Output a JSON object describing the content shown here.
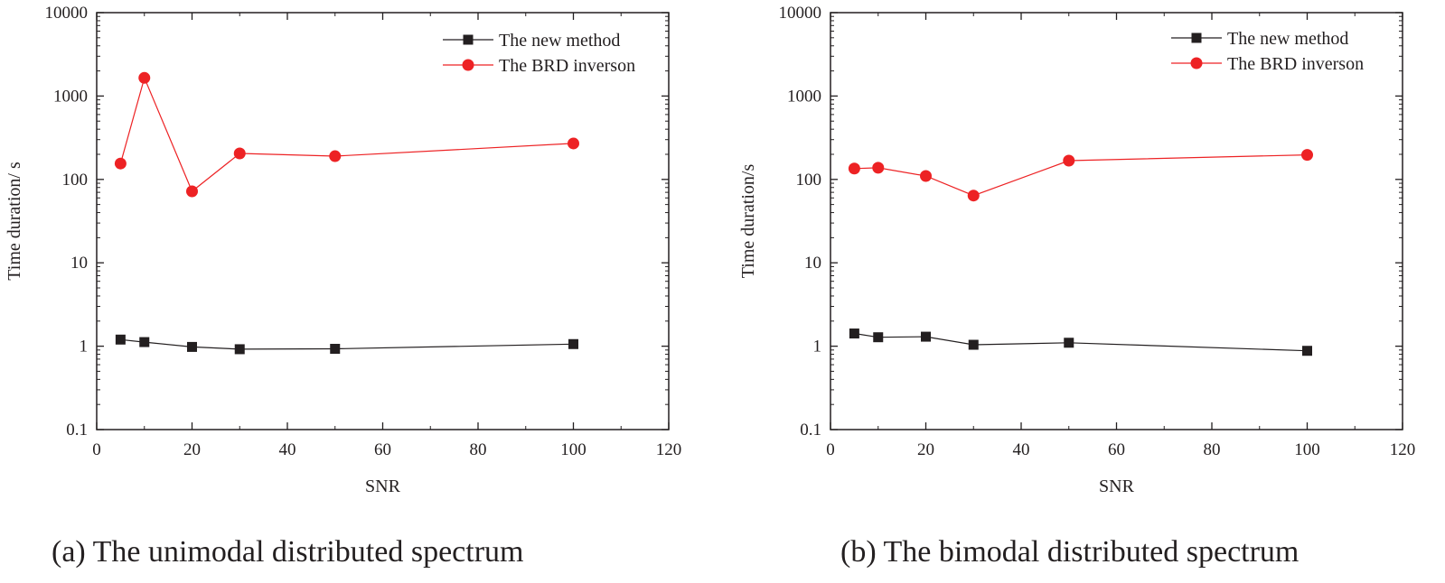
{
  "chart_data": [
    {
      "type": "line",
      "caption": "(a) The unimodal distributed spectrum",
      "xlabel": "SNR",
      "ylabel": "Time duration/ s",
      "xlim": [
        0,
        120
      ],
      "ylim": [
        0.1,
        10000
      ],
      "yscale": "log",
      "xticks": [
        "0",
        "20",
        "40",
        "60",
        "80",
        "100",
        "120"
      ],
      "yticks": [
        "0.1",
        "1",
        "10",
        "100",
        "1000",
        "10000"
      ],
      "legend_position": "top-right",
      "series": [
        {
          "name": "The new method",
          "marker": "square",
          "color": "#231f20",
          "x": [
            5,
            10,
            20,
            30,
            50,
            100
          ],
          "values": [
            1.2,
            1.12,
            0.98,
            0.92,
            0.93,
            1.06
          ]
        },
        {
          "name": "The BRD inverson",
          "marker": "circle",
          "color": "#ed2224",
          "x": [
            5,
            10,
            20,
            30,
            50,
            100
          ],
          "values": [
            155,
            1650,
            72,
            205,
            190,
            270
          ]
        }
      ]
    },
    {
      "type": "line",
      "caption": "(b) The bimodal distributed spectrum",
      "xlabel": "SNR",
      "ylabel": "Time duration/s",
      "xlim": [
        0,
        120
      ],
      "ylim": [
        0.1,
        10000
      ],
      "yscale": "log",
      "xticks": [
        "0",
        "20",
        "40",
        "60",
        "80",
        "100",
        "120"
      ],
      "yticks": [
        "0.1",
        "1",
        "10",
        "100",
        "1000",
        "10000"
      ],
      "legend_position": "top-right",
      "series": [
        {
          "name": "The new method",
          "marker": "square",
          "color": "#231f20",
          "x": [
            5,
            10,
            20,
            30,
            50,
            100
          ],
          "values": [
            1.42,
            1.28,
            1.3,
            1.04,
            1.1,
            0.88
          ]
        },
        {
          "name": "The BRD inverson",
          "marker": "circle",
          "color": "#ed2224",
          "x": [
            5,
            10,
            20,
            30,
            50,
            100
          ],
          "values": [
            135,
            138,
            110,
            64,
            168,
            197
          ]
        }
      ]
    }
  ]
}
